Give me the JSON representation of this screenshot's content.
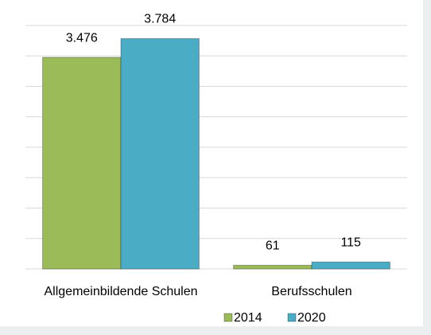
{
  "chart_data": {
    "type": "bar",
    "categories": [
      "Allgemeinbildende Schulen",
      "Berufsschulen"
    ],
    "series": [
      {
        "name": "2014",
        "color": "#9bbb59",
        "values": [
          3476,
          61
        ],
        "value_labels": [
          "3.476",
          "61"
        ]
      },
      {
        "name": "2020",
        "color": "#4bacc6",
        "values": [
          3784,
          115
        ],
        "value_labels": [
          "3.784",
          "115"
        ]
      }
    ],
    "ylim": [
      0,
      4000
    ],
    "yticks": [
      0,
      500,
      1000,
      1500,
      2000,
      2500,
      3000,
      3500,
      4000
    ],
    "grid": true,
    "legend": "bottom"
  }
}
